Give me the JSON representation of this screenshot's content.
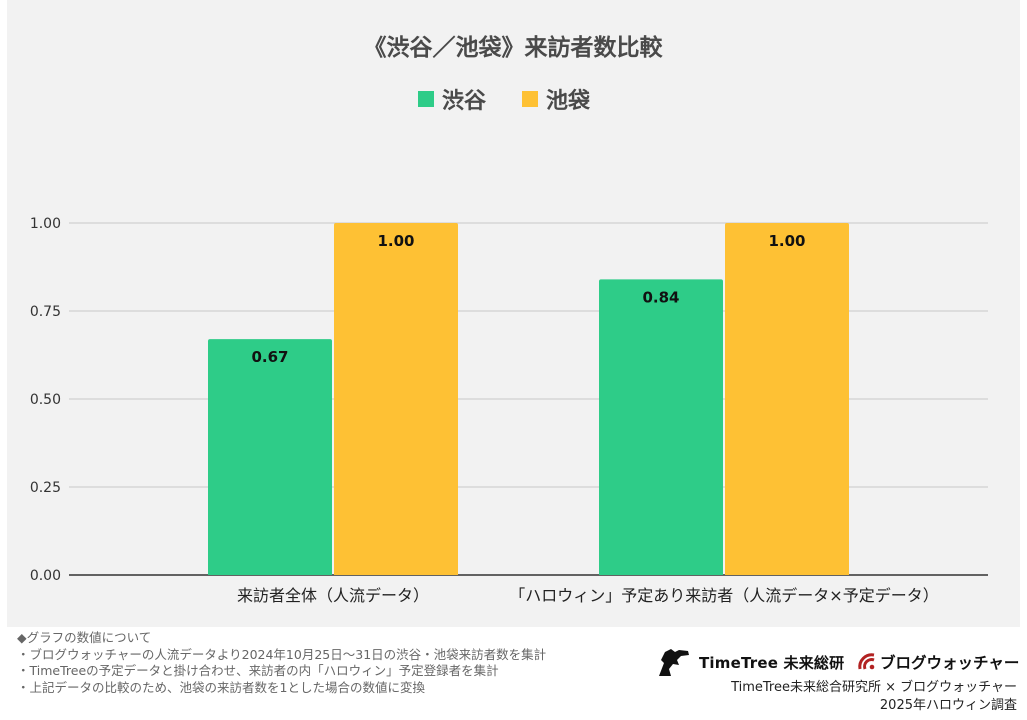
{
  "chart_data": {
    "type": "bar",
    "title": "《渋谷／池袋》来訪者数比較",
    "categories": [
      "来訪者全体（人流データ）",
      "「ハロウィン」予定あり来訪者（人流データ×予定データ）"
    ],
    "series": [
      {
        "name": "渋谷",
        "color": "#2ecc88",
        "values": [
          0.67,
          0.84
        ],
        "labels": [
          "0.67",
          "0.84"
        ]
      },
      {
        "name": "池袋",
        "color": "#fec134",
        "values": [
          1.0,
          1.0
        ],
        "labels": [
          "1.00",
          "1.00"
        ]
      }
    ],
    "ylim": [
      0,
      1
    ],
    "yticks": [
      0,
      0.25,
      0.5,
      0.75,
      1.0
    ],
    "ytick_labels": [
      "0.00",
      "0.25",
      "0.50",
      "0.75",
      "1.00"
    ],
    "legend_position": "top-center",
    "grid": true,
    "xlabel": "",
    "ylabel": ""
  },
  "notes": [
    "◆グラフの数値について",
    "・ブログウォッチャーの人流データより2024年10月25日～31日の渋谷・池袋来訪者数を集計",
    "・TimeTreeの予定データと掛け合わせ、来訪者の内「ハロウィン」予定登録者を集計",
    "・上記データの比較のため、池袋の来訪者数を1とした場合の数値に変換"
  ],
  "logos": {
    "timetree": "TimeTree 未来総研",
    "blogwatcher": "ブログウォッチャー",
    "timetree_icon": "silhouette-icon",
    "blogwatcher_icon": "signal-icon"
  },
  "credit": {
    "line1": "TimeTree未来総合研究所 × ブログウォッチャー",
    "line2": "2025年ハロウィン調査"
  }
}
